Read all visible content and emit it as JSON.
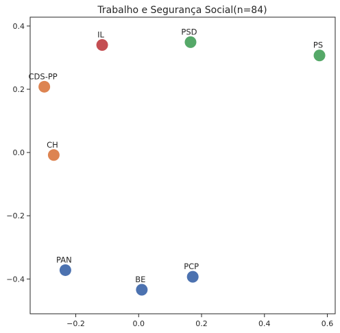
{
  "chart_data": {
    "type": "scatter",
    "title": "Trabalho e Segurança Social(n=84)",
    "xlabel": "",
    "ylabel": "",
    "xlim": [
      -0.345,
      0.625
    ],
    "ylim": [
      -0.51,
      0.428
    ],
    "x_ticks": [
      -0.2,
      0.0,
      0.2,
      0.4,
      0.6
    ],
    "x_tick_labels": [
      "−0.2",
      "0.0",
      "0.2",
      "0.4",
      "0.6"
    ],
    "y_ticks": [
      -0.4,
      -0.2,
      0.0,
      0.2,
      0.4
    ],
    "y_tick_labels": [
      "−0.4",
      "−0.2",
      "0.0",
      "0.2",
      "0.4"
    ],
    "grid": false,
    "points": [
      {
        "label": "IL",
        "x": -0.116,
        "y": 0.34,
        "color": "#c44e52"
      },
      {
        "label": "PSD",
        "x": 0.165,
        "y": 0.349,
        "color": "#55a868"
      },
      {
        "label": "PS",
        "x": 0.575,
        "y": 0.307,
        "color": "#55a868"
      },
      {
        "label": "CDS-PP",
        "x": -0.3,
        "y": 0.208,
        "color": "#dd8452"
      },
      {
        "label": "CH",
        "x": -0.27,
        "y": -0.008,
        "color": "#dd8452"
      },
      {
        "label": "PAN",
        "x": -0.233,
        "y": -0.372,
        "color": "#4c72b0"
      },
      {
        "label": "PCP",
        "x": 0.172,
        "y": -0.393,
        "color": "#4c72b0"
      },
      {
        "label": "BE",
        "x": 0.01,
        "y": -0.434,
        "color": "#4c72b0"
      }
    ]
  }
}
